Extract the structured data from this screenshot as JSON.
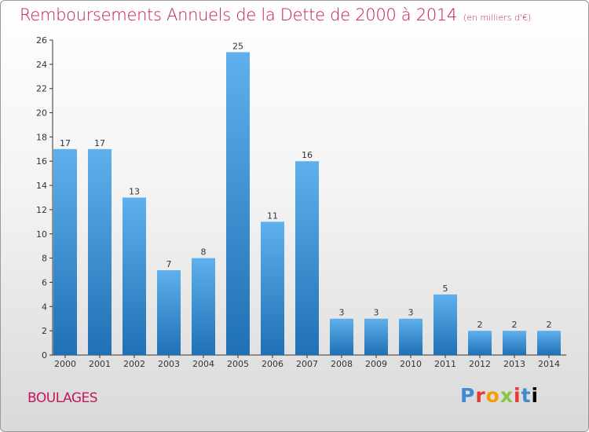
{
  "title": "Remboursements Annuels de la Dette de 2000 à 2014",
  "subtitle": "(en milliers d'€)",
  "commune": "BOULAGES",
  "logo": [
    "P",
    "r",
    "o",
    "x",
    "i",
    "t",
    "i"
  ],
  "colors": {
    "bar_top": "#5fb0ec",
    "bar_bottom": "#1f70b5",
    "title": "#c2185b"
  },
  "chart_data": {
    "type": "bar",
    "title": "Remboursements Annuels de la Dette de 2000 à 2014",
    "categories": [
      "2000",
      "2001",
      "2002",
      "2003",
      "2004",
      "2005",
      "2006",
      "2007",
      "2008",
      "2009",
      "2010",
      "2011",
      "2012",
      "2013",
      "2014"
    ],
    "values": [
      17,
      17,
      13,
      7,
      8,
      25,
      11,
      16,
      3,
      3,
      3,
      5,
      2,
      2,
      2
    ],
    "ylim": [
      0,
      26
    ],
    "yticks": [
      0,
      2,
      4,
      6,
      8,
      10,
      12,
      14,
      16,
      18,
      20,
      22,
      24,
      26
    ],
    "grid": false,
    "xlabel": "",
    "ylabel": ""
  }
}
